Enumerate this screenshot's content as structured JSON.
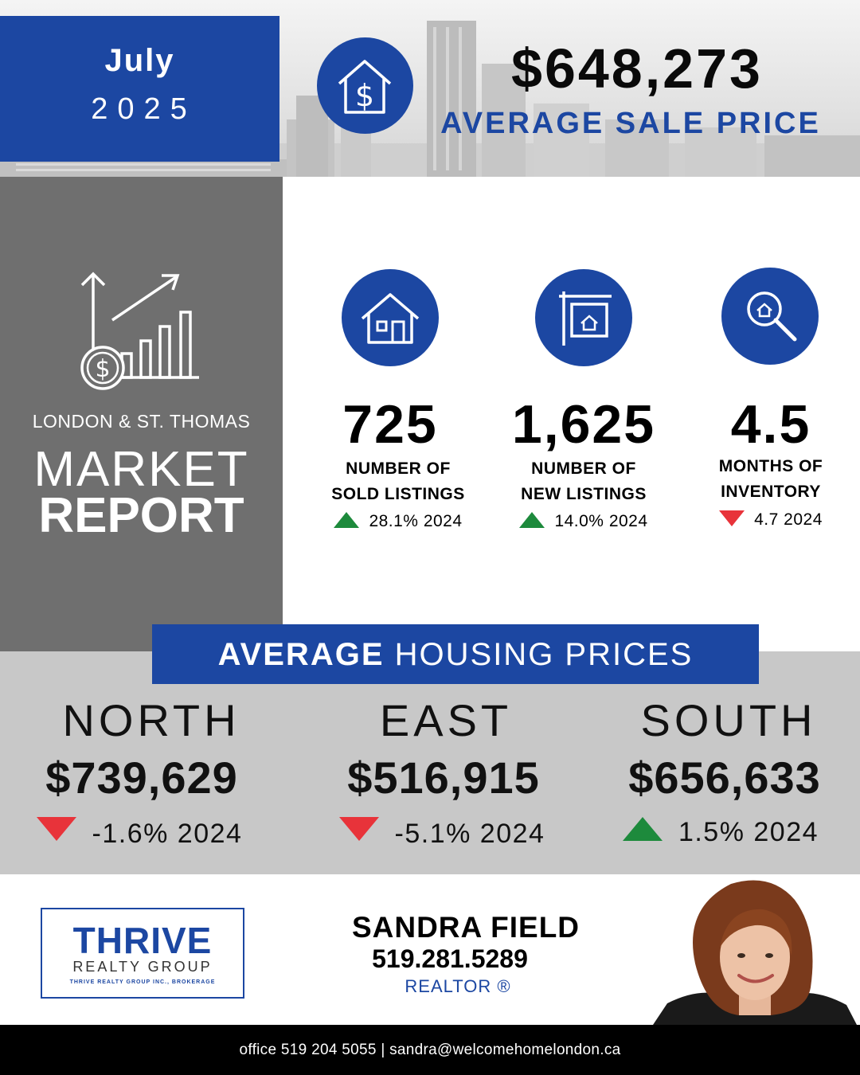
{
  "header": {
    "month": "July",
    "year": "2025",
    "average_sale_price": "$648,273",
    "average_sale_price_label": "AVERAGE SALE PRICE",
    "icon": "house-dollar-icon"
  },
  "report": {
    "region": "LONDON & ST. THOMAS",
    "title_line1": "MARKET",
    "title_line2": "REPORT",
    "icon": "growth-chart-dollar-icon"
  },
  "stats": [
    {
      "icon": "house-icon",
      "value": "725",
      "label_line1": "NUMBER OF",
      "label_line2": "SOLD LISTINGS",
      "change": "28.1% 2024",
      "direction": "up"
    },
    {
      "icon": "for-sale-sign-icon",
      "value": "1,625",
      "label_line1": "NUMBER OF",
      "label_line2": "NEW LISTINGS",
      "change": "14.0% 2024",
      "direction": "up"
    },
    {
      "icon": "house-search-icon",
      "value": "4.5",
      "label_line1": "MONTHS OF",
      "label_line2": "INVENTORY",
      "change": "4.7 2024",
      "direction": "down"
    }
  ],
  "housing_prices": {
    "banner_bold": "AVERAGE",
    "banner_rest": "HOUSING PRICES",
    "regions": [
      {
        "name": "NORTH",
        "price": "$739,629",
        "change": "-1.6% 2024",
        "direction": "down"
      },
      {
        "name": "EAST",
        "price": "$516,915",
        "change": "-5.1% 2024",
        "direction": "down"
      },
      {
        "name": "SOUTH",
        "price": "$656,633",
        "change": "1.5% 2024",
        "direction": "up"
      }
    ]
  },
  "brokerage": {
    "name": "THRIVE",
    "subtitle": "REALTY GROUP",
    "legal": "THRIVE REALTY GROUP INC., BROKERAGE"
  },
  "agent": {
    "name": "SANDRA FIELD",
    "phone": "519.281.5289",
    "title": "REALTOR ®"
  },
  "contact_bar": "office 519 204 5055 | sandra@welcomehomelondon.ca",
  "colors": {
    "brand_blue": "#1c47a2",
    "panel_gray": "#6f6f6f",
    "band_gray": "#c8c8c8",
    "up_green": "#1d8a3c",
    "down_red": "#e8333a"
  }
}
